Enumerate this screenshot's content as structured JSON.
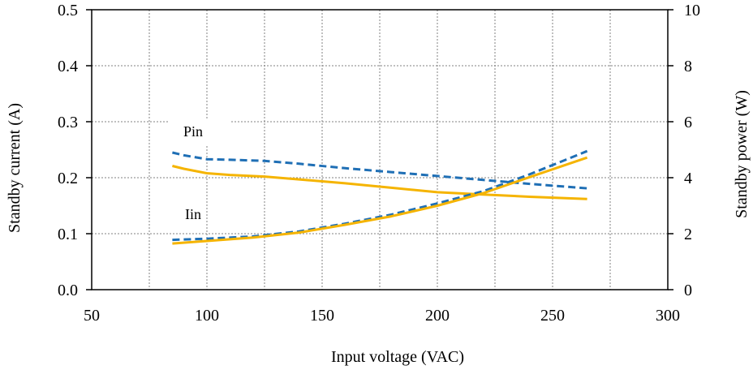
{
  "chart_data": {
    "type": "line",
    "title": "",
    "xlabel": "Input voltage  (VAC)",
    "ylabel_left": "Standby current (A)",
    "ylabel_right": "Standby power (W)",
    "xlim": [
      50,
      300
    ],
    "ylim_left": [
      0,
      0.5
    ],
    "ylim_right": [
      0,
      10
    ],
    "x_ticks": [
      "50",
      "100",
      "150",
      "200",
      "250",
      "300"
    ],
    "x_tick_values": [
      50,
      100,
      150,
      200,
      250,
      300
    ],
    "x_grid": [
      75,
      100,
      125,
      150,
      175,
      200,
      225,
      250,
      275
    ],
    "y_left_ticks": [
      "0.0",
      "0.1",
      "0.2",
      "0.3",
      "0.4",
      "0.5"
    ],
    "y_left_tick_values": [
      0,
      0.1,
      0.2,
      0.3,
      0.4,
      0.5
    ],
    "y_right_ticks": [
      "0",
      "2",
      "4",
      "6",
      "8",
      "10"
    ],
    "y_right_tick_values": [
      0,
      2,
      4,
      6,
      8,
      10
    ],
    "grid": true,
    "annotations": [
      {
        "text": "Pin"
      },
      {
        "text": "Iin"
      }
    ],
    "colors": {
      "blue": "#1f6fb5",
      "orange": "#f5b400"
    },
    "series": [
      {
        "color": "#1f6fb5",
        "dash": true,
        "axis": "left",
        "x": [
          85,
          90,
          100,
          110,
          125,
          140,
          160,
          180,
          200,
          220,
          240,
          265
        ],
        "values": [
          0.245,
          0.24,
          0.233,
          0.232,
          0.23,
          0.225,
          0.217,
          0.21,
          0.203,
          0.196,
          0.189,
          0.181
        ]
      },
      {
        "color": "#f5b400",
        "dash": false,
        "axis": "left",
        "x": [
          85,
          90,
          100,
          110,
          125,
          140,
          160,
          180,
          200,
          220,
          240,
          265
        ],
        "values": [
          0.221,
          0.216,
          0.208,
          0.205,
          0.202,
          0.197,
          0.19,
          0.182,
          0.174,
          0.17,
          0.166,
          0.162
        ]
      },
      {
        "color": "#1f6fb5",
        "dash": true,
        "axis": "right",
        "x": [
          85,
          100,
          120,
          140,
          160,
          180,
          200,
          220,
          240,
          265
        ],
        "values": [
          1.78,
          1.82,
          1.9,
          2.08,
          2.36,
          2.68,
          3.08,
          3.52,
          4.12,
          4.95
        ]
      },
      {
        "color": "#f5b400",
        "dash": false,
        "axis": "right",
        "x": [
          85,
          100,
          120,
          140,
          160,
          180,
          200,
          220,
          240,
          265
        ],
        "values": [
          1.65,
          1.74,
          1.86,
          2.04,
          2.32,
          2.62,
          3.0,
          3.45,
          4.02,
          4.72
        ]
      }
    ]
  }
}
